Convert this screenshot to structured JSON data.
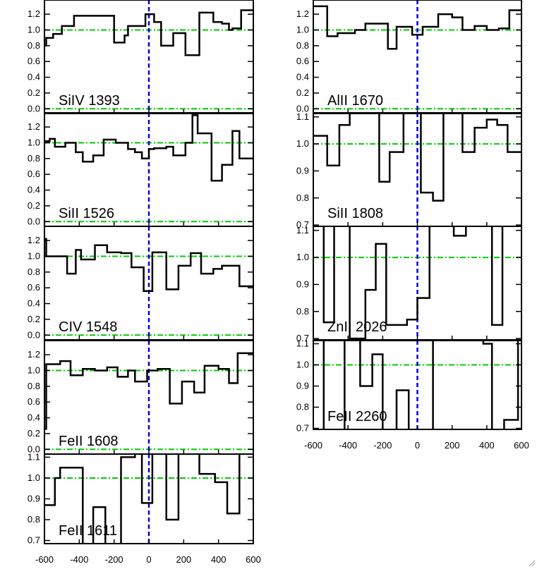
{
  "figure": {
    "x_ticks": [
      "-600",
      "-400",
      "-200",
      "0",
      "200",
      "400",
      "600"
    ],
    "colors": {
      "spectrum": "#000000",
      "continuum": "#00cc00",
      "zero_velocity": "#0000dd"
    }
  },
  "chart_data": [
    {
      "type": "line",
      "label": "SiIV 1393",
      "column": "left",
      "xlim": [
        -600,
        600
      ],
      "ylim": [
        -0.06,
        1.38
      ],
      "yticks": [
        "0.0",
        "0.2",
        "0.4",
        "0.6",
        "0.8",
        "1.0",
        "1.2"
      ],
      "ytick_values": [
        0,
        0.2,
        0.4,
        0.6,
        0.8,
        1.0,
        1.2
      ],
      "continuum_levels": [
        1.0,
        0.0
      ],
      "x": [
        -600,
        -590,
        -550,
        -500,
        -430,
        -400,
        -340,
        -300,
        -200,
        -140,
        -120,
        -70,
        -20,
        30,
        70,
        140,
        210,
        290,
        370,
        420,
        460,
        480,
        530,
        560
      ],
      "y": [
        0.8,
        0.9,
        0.95,
        1.05,
        1.18,
        1.18,
        1.18,
        1.18,
        0.84,
        0.93,
        1.05,
        1.05,
        1.2,
        1.1,
        0.8,
        0.96,
        0.68,
        1.22,
        1.1,
        1.08,
        1.0,
        1.02,
        1.25,
        1.25
      ]
    },
    {
      "type": "line",
      "label": "SiII 1526",
      "column": "left",
      "xlim": [
        -600,
        600
      ],
      "ylim": [
        -0.06,
        1.38
      ],
      "yticks": [
        "0.0",
        "0.2",
        "0.4",
        "0.6",
        "0.8",
        "1.0",
        "1.2"
      ],
      "ytick_values": [
        0,
        0.2,
        0.4,
        0.6,
        0.8,
        1.0,
        1.2
      ],
      "continuum_levels": [
        1.0,
        0.0
      ],
      "x": [
        -600,
        -570,
        -540,
        -480,
        -420,
        -380,
        -320,
        -260,
        -190,
        -120,
        -80,
        -40,
        0,
        30,
        100,
        140,
        210,
        250,
        280,
        360,
        420,
        480,
        520,
        560
      ],
      "y": [
        1.02,
        1.05,
        0.95,
        1.0,
        0.88,
        0.76,
        0.84,
        1.04,
        1.0,
        0.92,
        0.88,
        0.8,
        0.92,
        0.93,
        0.95,
        0.84,
        1.0,
        1.35,
        1.12,
        0.52,
        0.72,
        1.15,
        0.8,
        0.8
      ]
    },
    {
      "type": "line",
      "label": "CIV 1548",
      "column": "left",
      "xlim": [
        -600,
        600
      ],
      "ylim": [
        -0.06,
        1.38
      ],
      "yticks": [
        "0.0",
        "0.2",
        "0.4",
        "0.6",
        "0.8",
        "1.0",
        "1.2"
      ],
      "ytick_values": [
        0,
        0.2,
        0.4,
        0.6,
        0.8,
        1.0,
        1.2
      ],
      "continuum_levels": [
        1.0,
        0.0
      ],
      "x": [
        -600,
        -590,
        -530,
        -470,
        -420,
        -390,
        -310,
        -240,
        -160,
        -100,
        -30,
        20,
        50,
        100,
        170,
        240,
        300,
        370,
        420,
        460,
        520,
        560
      ],
      "y": [
        1.22,
        1.0,
        1.0,
        0.78,
        1.08,
        0.96,
        1.14,
        1.05,
        1.04,
        0.86,
        0.56,
        1.05,
        1.05,
        0.58,
        0.88,
        1.04,
        0.78,
        0.84,
        0.88,
        0.88,
        0.62,
        0.62
      ]
    },
    {
      "type": "line",
      "label": "FeII 1608",
      "column": "left",
      "xlim": [
        -600,
        600
      ],
      "ylim": [
        -0.06,
        1.38
      ],
      "yticks": [
        "0.0",
        "0.2",
        "0.4",
        "0.6",
        "0.8",
        "1.0",
        "1.2"
      ],
      "ytick_values": [
        0,
        0.2,
        0.4,
        0.6,
        0.8,
        1.0,
        1.2
      ],
      "continuum_levels": [
        1.0,
        0.0
      ],
      "x": [
        -600,
        -590,
        -560,
        -510,
        -450,
        -380,
        -310,
        -240,
        -180,
        -120,
        -80,
        -10,
        50,
        120,
        190,
        260,
        320,
        400,
        460,
        510,
        540,
        560
      ],
      "y": [
        0.26,
        1.08,
        1.08,
        1.12,
        0.94,
        1.02,
        1.0,
        1.04,
        0.92,
        1.0,
        0.86,
        1.0,
        1.02,
        0.58,
        0.86,
        0.72,
        1.06,
        1.02,
        0.84,
        1.22,
        1.22,
        1.22
      ]
    },
    {
      "type": "line",
      "label": "FeII 1611",
      "column": "left",
      "xlim": [
        -600,
        600
      ],
      "ylim": [
        0.685,
        1.115
      ],
      "yticks": [
        "0.7",
        "0.8",
        "0.9",
        "1.0",
        "1.1"
      ],
      "ytick_values": [
        0.7,
        0.8,
        0.9,
        1.0,
        1.1
      ],
      "continuum_levels": [
        1.0
      ],
      "x": [
        -600,
        -540,
        -510,
        -380,
        -320,
        -250,
        -190,
        -160,
        -80,
        -40,
        20,
        100,
        170,
        290,
        380,
        450,
        520,
        560
      ],
      "y": [
        0.87,
        1.0,
        1.05,
        0.68,
        0.86,
        0.68,
        0.68,
        1.1,
        1.12,
        0.88,
        1.12,
        0.8,
        1.12,
        1.02,
        0.98,
        0.83,
        1.12,
        1.12
      ]
    },
    {
      "type": "line",
      "label": "AlII 1670",
      "column": "right",
      "xlim": [
        -600,
        600
      ],
      "ylim": [
        -0.06,
        1.38
      ],
      "yticks": [
        "0.0",
        "0.2",
        "0.4",
        "0.6",
        "0.8",
        "1.0",
        "1.2"
      ],
      "ytick_values": [
        0,
        0.2,
        0.4,
        0.6,
        0.8,
        1.0,
        1.2
      ],
      "continuum_levels": [
        1.0,
        0.0
      ],
      "x": [
        -600,
        -590,
        -520,
        -460,
        -360,
        -300,
        -250,
        -170,
        -120,
        -30,
        30,
        120,
        200,
        260,
        330,
        400,
        470,
        530,
        560
      ],
      "y": [
        1.3,
        1.3,
        0.92,
        0.96,
        1.0,
        1.08,
        1.08,
        0.76,
        1.04,
        0.94,
        1.04,
        1.2,
        1.16,
        1.0,
        1.05,
        1.0,
        1.02,
        1.25,
        1.25
      ]
    },
    {
      "type": "line",
      "label": "SiII 1808",
      "column": "right",
      "xlim": [
        -600,
        600
      ],
      "ylim": [
        0.695,
        1.115
      ],
      "yticks": [
        "0.7",
        "0.8",
        "0.9",
        "1.0",
        "1.1"
      ],
      "ytick_values": [
        0.7,
        0.8,
        0.9,
        1.0,
        1.1
      ],
      "continuum_levels": [
        1.0
      ],
      "x": [
        -600,
        -590,
        -520,
        -450,
        -390,
        -220,
        -160,
        -80,
        20,
        90,
        150,
        260,
        330,
        400,
        460,
        520,
        560
      ],
      "y": [
        1.03,
        1.03,
        0.92,
        1.07,
        1.12,
        0.86,
        0.97,
        1.12,
        0.82,
        0.79,
        1.12,
        0.97,
        1.06,
        1.09,
        1.07,
        0.97,
        0.97
      ]
    },
    {
      "type": "line",
      "label": "ZnII 2026",
      "column": "right",
      "xlim": [
        -600,
        600
      ],
      "ylim": [
        0.695,
        1.115
      ],
      "yticks": [
        "0.7",
        "0.8",
        "0.9",
        "1.0",
        "1.1"
      ],
      "ytick_values": [
        0.7,
        0.8,
        0.9,
        1.0,
        1.1
      ],
      "continuum_levels": [
        1.0
      ],
      "x": [
        -600,
        -540,
        -480,
        -390,
        -300,
        -240,
        -180,
        -130,
        -60,
        0,
        70,
        210,
        280,
        430,
        490,
        560
      ],
      "y": [
        1.12,
        0.76,
        1.12,
        0.7,
        0.88,
        1.05,
        0.75,
        0.75,
        0.77,
        0.85,
        1.12,
        1.08,
        1.12,
        0.75,
        1.12,
        1.12
      ]
    },
    {
      "type": "line",
      "label": "FeII 2260",
      "column": "right",
      "xlim": [
        -600,
        600
      ],
      "ylim": [
        0.695,
        1.115
      ],
      "yticks": [
        "0.7",
        "0.8",
        "0.9",
        "1.0",
        "1.1"
      ],
      "ytick_values": [
        0.7,
        0.8,
        0.9,
        1.0,
        1.1
      ],
      "continuum_levels": [
        1.0
      ],
      "x": [
        -600,
        -540,
        -420,
        -330,
        -260,
        -200,
        -120,
        -50,
        90,
        380,
        430,
        500,
        580
      ],
      "y": [
        1.12,
        0.65,
        1.12,
        0.9,
        1.05,
        0.65,
        0.88,
        0.65,
        1.12,
        1.1,
        0.65,
        0.74,
        1.12
      ]
    }
  ]
}
